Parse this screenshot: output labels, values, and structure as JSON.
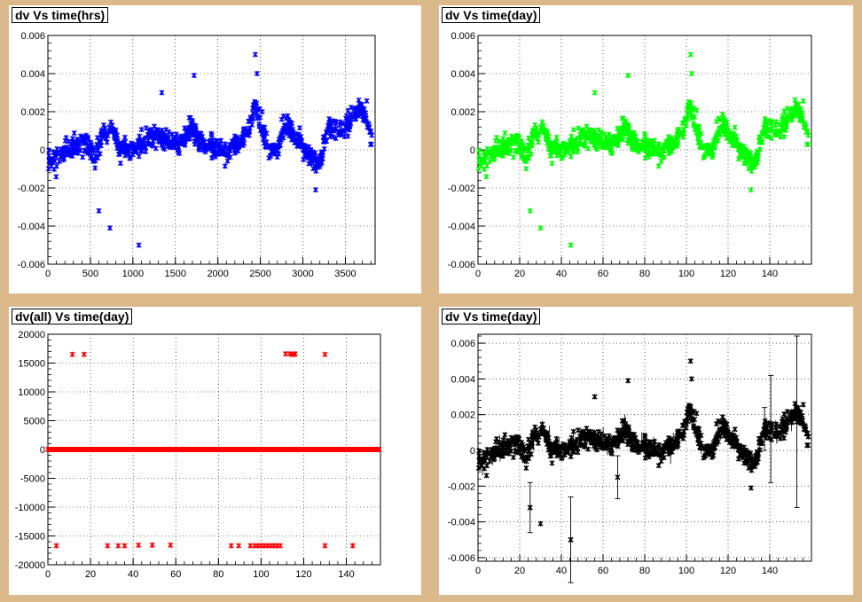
{
  "chart_data": [
    {
      "type": "scatter",
      "title": "dv Vs time(hrs)",
      "xlabel": "",
      "ylabel": "",
      "xlim": [
        0,
        3850
      ],
      "ylim": [
        -0.006,
        0.006
      ],
      "xticks": [
        0,
        500,
        1000,
        1500,
        2000,
        2500,
        3000,
        3500
      ],
      "yticks": [
        -0.006,
        -0.004,
        -0.002,
        0,
        0.002,
        0.004,
        0.006
      ],
      "ytick_labels": [
        "-0.006",
        "-0.004",
        "-0.002",
        "0",
        "0.002",
        "0.004",
        "0.006"
      ],
      "grid": true,
      "color": "#0000ff",
      "error_bars": false,
      "outliers": [
        [
          600,
          -0.0032
        ],
        [
          730,
          -0.0041
        ],
        [
          1070,
          -0.005
        ],
        [
          1340,
          0.003
        ],
        [
          1720,
          0.0039
        ],
        [
          2440,
          0.005
        ],
        [
          2460,
          0.004
        ],
        [
          3150,
          -0.0021
        ]
      ],
      "trend": [
        [
          0,
          -0.0005
        ],
        [
          150,
          -0.0003
        ],
        [
          300,
          0.0002
        ],
        [
          450,
          0.0004
        ],
        [
          550,
          -0.0005
        ],
        [
          650,
          0.0008
        ],
        [
          750,
          0.0011
        ],
        [
          850,
          0.0002
        ],
        [
          1000,
          0.0001
        ],
        [
          1100,
          0.0003
        ],
        [
          1250,
          0.0008
        ],
        [
          1400,
          0.0005
        ],
        [
          1550,
          0.0003
        ],
        [
          1700,
          0.0012
        ],
        [
          1800,
          0.0004
        ],
        [
          1950,
          0.0002
        ],
        [
          2100,
          -0.0001
        ],
        [
          2250,
          0.0004
        ],
        [
          2350,
          0.0008
        ],
        [
          2440,
          0.0025
        ],
        [
          2520,
          0.0012
        ],
        [
          2600,
          -0.0002
        ],
        [
          2700,
          0.0001
        ],
        [
          2800,
          0.0015
        ],
        [
          2900,
          0.0007
        ],
        [
          3000,
          0.0002
        ],
        [
          3100,
          -0.0005
        ],
        [
          3200,
          -0.0008
        ],
        [
          3300,
          0.0012
        ],
        [
          3450,
          0.0011
        ],
        [
          3550,
          0.0014
        ],
        [
          3650,
          0.0022
        ],
        [
          3750,
          0.0019
        ],
        [
          3810,
          0.0004
        ]
      ]
    },
    {
      "type": "scatter",
      "title": "dv Vs time(day)",
      "xlabel": "",
      "ylabel": "",
      "xlim": [
        0,
        160
      ],
      "ylim": [
        -0.006,
        0.006
      ],
      "xticks": [
        0,
        20,
        40,
        60,
        80,
        100,
        120,
        140
      ],
      "yticks": [
        -0.006,
        -0.004,
        -0.002,
        0,
        0.002,
        0.004,
        0.006
      ],
      "ytick_labels": [
        "-0.006",
        "-0.004",
        "-0.002",
        "0",
        "0.002",
        "0.004",
        "0.006"
      ],
      "grid": true,
      "color": "#00ff00",
      "error_bars": false,
      "outliers": [
        [
          25,
          -0.0032
        ],
        [
          30,
          -0.0041
        ],
        [
          44.5,
          -0.005
        ],
        [
          56,
          0.003
        ],
        [
          72,
          0.0039
        ],
        [
          102,
          0.005
        ],
        [
          102.5,
          0.004
        ],
        [
          131,
          -0.0021
        ]
      ],
      "trend": [
        [
          0,
          -0.0005
        ],
        [
          6,
          -0.0003
        ],
        [
          12.5,
          0.0002
        ],
        [
          19,
          0.0004
        ],
        [
          23,
          -0.0005
        ],
        [
          27,
          0.0008
        ],
        [
          31,
          0.0011
        ],
        [
          35,
          0.0002
        ],
        [
          41.5,
          0.0001
        ],
        [
          46,
          0.0003
        ],
        [
          52,
          0.0008
        ],
        [
          58,
          0.0005
        ],
        [
          64.5,
          0.0003
        ],
        [
          71,
          0.0012
        ],
        [
          75,
          0.0004
        ],
        [
          81,
          0.0002
        ],
        [
          87.5,
          -0.0001
        ],
        [
          94,
          0.0004
        ],
        [
          98,
          0.0008
        ],
        [
          101.5,
          0.0025
        ],
        [
          105,
          0.0012
        ],
        [
          108,
          -0.0002
        ],
        [
          112.5,
          0.0001
        ],
        [
          117,
          0.0015
        ],
        [
          121,
          0.0007
        ],
        [
          125,
          0.0002
        ],
        [
          129,
          -0.0005
        ],
        [
          133,
          -0.0008
        ],
        [
          137.5,
          0.0012
        ],
        [
          144,
          0.0011
        ],
        [
          148,
          0.0014
        ],
        [
          152,
          0.0022
        ],
        [
          156,
          0.0019
        ],
        [
          158.5,
          0.0004
        ]
      ]
    },
    {
      "type": "scatter",
      "title": "dv(all) Vs time(day)",
      "xlabel": "",
      "ylabel": "",
      "xlim": [
        0,
        156
      ],
      "ylim": [
        -20000,
        20000
      ],
      "xticks": [
        0,
        20,
        40,
        60,
        80,
        100,
        120,
        140
      ],
      "yticks": [
        -20000,
        -15000,
        -10000,
        -5000,
        0,
        5000,
        10000,
        15000,
        20000
      ],
      "ytick_labels": [
        "-20000",
        "-15000",
        "-10000",
        "-5000",
        "0",
        "5000",
        "10000",
        "15000",
        "20000"
      ],
      "grid": true,
      "color": "#ff0000",
      "error_bars": false,
      "baseline_band": {
        "from": 0,
        "to": 155.5,
        "value": 0
      },
      "upper_points": [
        [
          11.5,
          16500
        ],
        [
          17,
          16500
        ],
        [
          111.5,
          16600
        ],
        [
          113.5,
          16600
        ],
        [
          114.5,
          16500
        ],
        [
          115.5,
          16500
        ],
        [
          116,
          16600
        ],
        [
          130,
          16500
        ]
      ],
      "lower_points": [
        [
          4,
          -16700
        ],
        [
          28,
          -16700
        ],
        [
          33,
          -16700
        ],
        [
          36,
          -16700
        ],
        [
          42.5,
          -16600
        ],
        [
          49,
          -16600
        ],
        [
          57.5,
          -16600
        ],
        [
          86,
          -16700
        ],
        [
          89.5,
          -16700
        ],
        [
          95,
          -16700
        ],
        [
          97,
          -16700
        ],
        [
          98.5,
          -16700
        ],
        [
          100,
          -16700
        ],
        [
          101.5,
          -16700
        ],
        [
          103,
          -16700
        ],
        [
          104.5,
          -16700
        ],
        [
          106,
          -16700
        ],
        [
          107.5,
          -16700
        ],
        [
          109,
          -16700
        ],
        [
          130,
          -16700
        ],
        [
          143,
          -16700
        ]
      ]
    },
    {
      "type": "scatter",
      "title": "dv Vs time(day)",
      "xlabel": "",
      "ylabel": "",
      "xlim": [
        0,
        160
      ],
      "ylim": [
        -0.0062,
        0.0065
      ],
      "xticks": [
        0,
        20,
        40,
        60,
        80,
        100,
        120,
        140
      ],
      "yticks": [
        -0.006,
        -0.004,
        -0.002,
        0,
        0.002,
        0.004,
        0.006
      ],
      "ytick_labels": [
        "-0.006",
        "-0.004",
        "-0.002",
        "0",
        "0.002",
        "0.004",
        "0.006"
      ],
      "grid": true,
      "color": "#000000",
      "error_bars": true,
      "outliers": [
        [
          25,
          -0.0032
        ],
        [
          30,
          -0.0041
        ],
        [
          44.5,
          -0.005
        ],
        [
          56,
          0.003
        ],
        [
          72,
          0.0039
        ],
        [
          102,
          0.005
        ],
        [
          102.5,
          0.004
        ],
        [
          131,
          -0.0021
        ]
      ],
      "error_bar_points": [
        [
          25,
          -0.0032,
          0.0014
        ],
        [
          44.5,
          -0.005,
          0.0024
        ],
        [
          67,
          -0.0015,
          0.0012
        ],
        [
          137.5,
          0.0012,
          0.0012
        ],
        [
          140.5,
          0.0012,
          0.003
        ],
        [
          153,
          0.0016,
          0.0048
        ]
      ],
      "trend": [
        [
          0,
          -0.0005
        ],
        [
          6,
          -0.0003
        ],
        [
          12.5,
          0.0002
        ],
        [
          19,
          0.0004
        ],
        [
          23,
          -0.0005
        ],
        [
          27,
          0.0008
        ],
        [
          31,
          0.0011
        ],
        [
          35,
          0.0002
        ],
        [
          41.5,
          0.0001
        ],
        [
          46,
          0.0003
        ],
        [
          52,
          0.0008
        ],
        [
          58,
          0.0005
        ],
        [
          64.5,
          0.0003
        ],
        [
          71,
          0.0012
        ],
        [
          75,
          0.0004
        ],
        [
          81,
          0.0002
        ],
        [
          87.5,
          -0.0001
        ],
        [
          94,
          0.0004
        ],
        [
          98,
          0.0008
        ],
        [
          101.5,
          0.0025
        ],
        [
          105,
          0.0012
        ],
        [
          108,
          -0.0002
        ],
        [
          112.5,
          0.0001
        ],
        [
          117,
          0.0015
        ],
        [
          121,
          0.0007
        ],
        [
          125,
          0.0002
        ],
        [
          129,
          -0.0005
        ],
        [
          133,
          -0.0008
        ],
        [
          137.5,
          0.0012
        ],
        [
          144,
          0.0011
        ],
        [
          148,
          0.0014
        ],
        [
          152,
          0.0022
        ],
        [
          156,
          0.0019
        ],
        [
          158.5,
          0.0004
        ]
      ]
    }
  ]
}
